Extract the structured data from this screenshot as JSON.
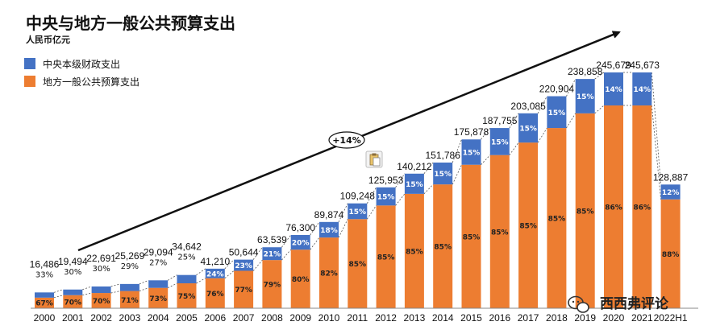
{
  "colors": {
    "central": "#4472C4",
    "local": "#ED7D31",
    "text": "#111111",
    "connector": "#555555"
  },
  "chart_data": {
    "type": "bar",
    "stacked": true,
    "title": "中央与地方一般公共预算支出",
    "subtitle": "人民币亿元",
    "legend_position": "top-left",
    "categories": [
      "2000",
      "2001",
      "2002",
      "2003",
      "2004",
      "2005",
      "2006",
      "2007",
      "2008",
      "2009",
      "2010",
      "2011",
      "2012",
      "2013",
      "2014",
      "2015",
      "2016",
      "2017",
      "2018",
      "2019",
      "2020",
      "2021",
      "2022H1"
    ],
    "totals": [
      16486,
      19494,
      22691,
      25269,
      29094,
      34642,
      41210,
      50644,
      63539,
      76300,
      89874,
      109248,
      125953,
      140212,
      151786,
      175878,
      187755,
      203085,
      220904,
      238858,
      245679,
      245673,
      128887
    ],
    "total_labels": [
      "16,486",
      "19,494",
      "22,691",
      "25,269",
      "29,094",
      "34,642",
      "41,210",
      "50,644",
      "63,539",
      "76,300",
      "89,874",
      "109,248",
      "125,953",
      "140,212",
      "151,786",
      "175,878",
      "187,755",
      "203,085",
      "220,904",
      "238,858",
      "245,679",
      "245,673",
      "128,887"
    ],
    "series": [
      {
        "name": "中央本级财政支出",
        "color": "#4472C4",
        "shares": [
          33,
          30,
          30,
          29,
          27,
          25,
          24,
          23,
          21,
          20,
          18,
          15,
          15,
          15,
          15,
          15,
          15,
          15,
          15,
          15,
          14,
          14,
          12
        ],
        "share_labels": [
          "33%",
          "30%",
          "30%",
          "29%",
          "27%",
          "25%",
          "24%",
          "23%",
          "21%",
          "20%",
          "18%",
          "15%",
          "15%",
          "15%",
          "15%",
          "15%",
          "15%",
          "15%",
          "15%",
          "15%",
          "14%",
          "14%",
          "12%"
        ]
      },
      {
        "name": "地方一般公共预算支出",
        "color": "#ED7D31",
        "shares": [
          67,
          70,
          70,
          71,
          73,
          75,
          76,
          77,
          79,
          80,
          82,
          85,
          85,
          85,
          85,
          85,
          85,
          85,
          85,
          85,
          86,
          86,
          88
        ],
        "share_labels": [
          "67%",
          "70%",
          "70%",
          "71%",
          "73%",
          "75%",
          "76%",
          "77%",
          "79%",
          "80%",
          "82%",
          "85%",
          "85%",
          "85%",
          "85%",
          "85%",
          "85%",
          "85%",
          "85%",
          "85%",
          "86%",
          "86%",
          "88%"
        ]
      }
    ],
    "ylim": [
      0,
      245679
    ],
    "annotation": {
      "text": "+14%",
      "meaning": "growth trend arrow"
    },
    "watermark": "西西弗评论"
  }
}
